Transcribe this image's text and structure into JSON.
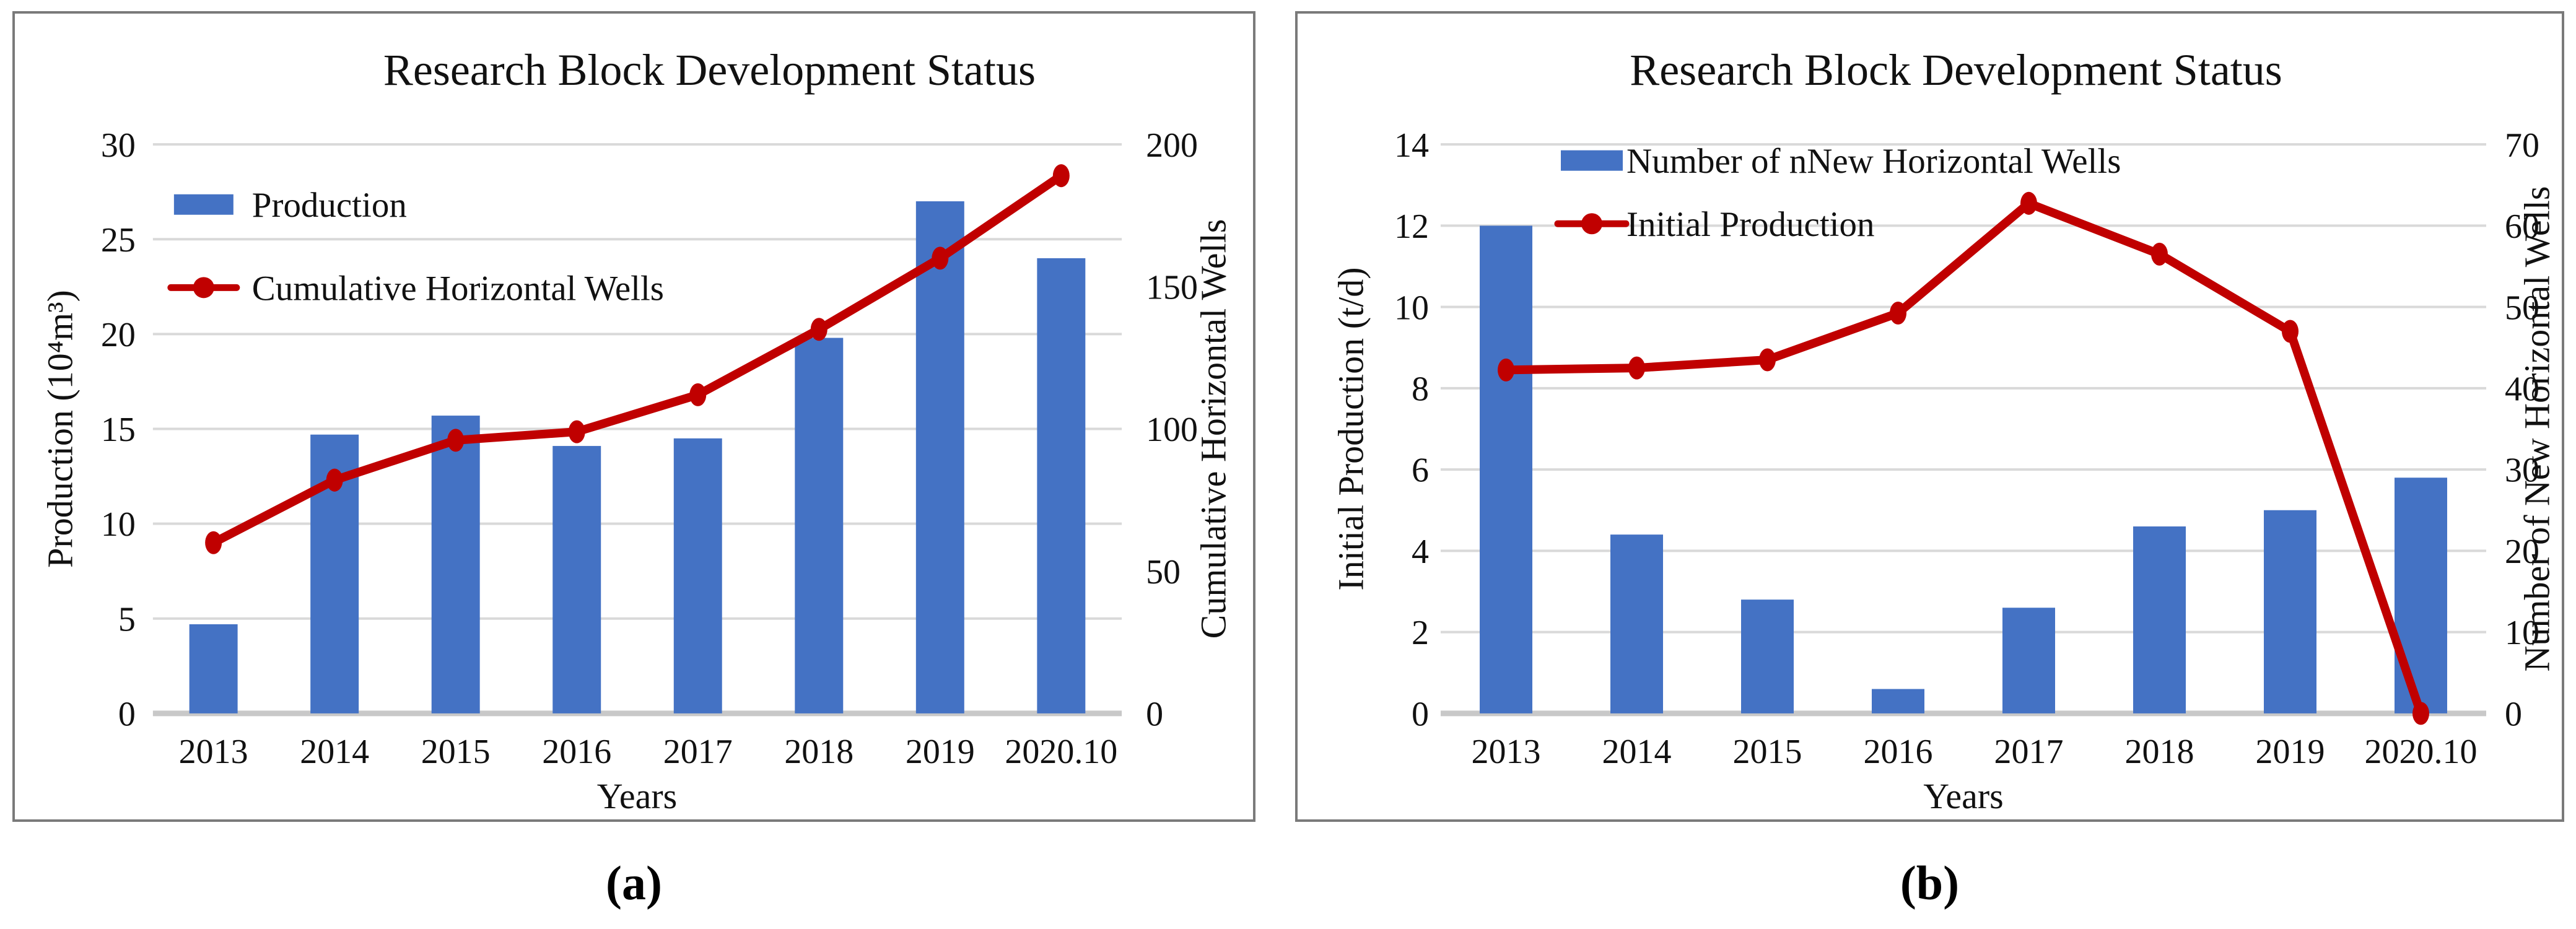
{
  "figures": [
    {
      "caption": "(a)"
    },
    {
      "caption": "(b)"
    }
  ],
  "colors": {
    "bar_blue": "#4472C4",
    "line_red": "#C00000",
    "gridline": "#D9D9D9",
    "axis_line": "#C8C8C8",
    "panel_border": "#7A7A7A"
  },
  "chart_data": [
    {
      "type": "combo-bar-line",
      "title": "Research Block Development Status",
      "categories": [
        "2013",
        "2014",
        "2015",
        "2016",
        "2017",
        "2018",
        "2019",
        "2020.10"
      ],
      "xlabel": "Years",
      "grid": "horizontal",
      "legend_position": "upper-left-inside",
      "left_axis": {
        "label": "Production (10⁴m³)",
        "min": 0,
        "max": 30,
        "step": 5
      },
      "right_axis": {
        "label": "Cumulative Horizontal Wells",
        "min": 0,
        "max": 200,
        "step": 50
      },
      "series": [
        {
          "name": "Production",
          "type": "bar",
          "axis": "left",
          "color": "#4472C4",
          "values": [
            4.7,
            14.7,
            15.7,
            14.1,
            14.5,
            19.8,
            27,
            24
          ]
        },
        {
          "name": "Cumulative Horizontal Wells",
          "type": "line",
          "axis": "right",
          "color": "#C00000",
          "marker": "circle",
          "values": [
            60,
            82,
            96,
            99,
            112,
            135,
            160,
            189
          ]
        }
      ]
    },
    {
      "type": "combo-bar-line",
      "title": "Research Block Development Status",
      "categories": [
        "2013",
        "2014",
        "2015",
        "2016",
        "2017",
        "2018",
        "2019",
        "2020.10"
      ],
      "xlabel": "Years",
      "grid": "horizontal",
      "legend_position": "upper-left-inside",
      "left_axis": {
        "label": "Initial Production (t/d)",
        "min": 0,
        "max": 14,
        "step": 2
      },
      "right_axis": {
        "label": "Number of New Horizontal Wells",
        "min": 0,
        "max": 70,
        "step": 10
      },
      "series": [
        {
          "name": "Number of nNew Horizontal Wells",
          "type": "bar",
          "axis": "right",
          "color": "#4472C4",
          "values": [
            60,
            22,
            14,
            3,
            13,
            23,
            25,
            29
          ]
        },
        {
          "name": "Initial Production",
          "type": "line",
          "axis": "left",
          "color": "#C00000",
          "marker": "circle",
          "values": [
            8.45,
            8.5,
            8.7,
            9.85,
            12.55,
            11.3,
            9.4,
            0
          ]
        }
      ]
    }
  ]
}
